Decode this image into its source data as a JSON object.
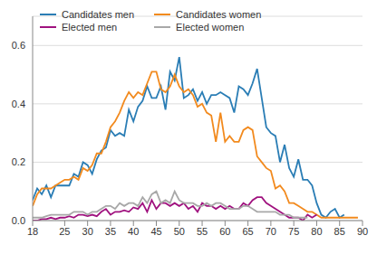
{
  "chart_data": {
    "type": "line",
    "x": [
      18,
      19,
      20,
      21,
      22,
      23,
      24,
      25,
      26,
      27,
      28,
      29,
      30,
      31,
      32,
      33,
      34,
      35,
      36,
      37,
      38,
      39,
      40,
      41,
      42,
      43,
      44,
      45,
      46,
      47,
      48,
      49,
      50,
      51,
      52,
      53,
      54,
      55,
      56,
      57,
      58,
      59,
      60,
      61,
      62,
      63,
      64,
      65,
      66,
      67,
      68,
      69,
      70,
      71,
      72,
      73,
      74,
      75,
      76,
      77,
      78,
      79,
      80,
      81,
      82,
      83,
      84,
      85,
      86,
      87,
      88,
      89
    ],
    "series": [
      {
        "name": "Candidates men",
        "color": "#2a7db5",
        "values": [
          0.07,
          0.11,
          0.09,
          0.12,
          0.08,
          0.12,
          0.12,
          0.12,
          0.12,
          0.16,
          0.15,
          0.2,
          0.19,
          0.16,
          0.21,
          0.24,
          0.25,
          0.31,
          0.29,
          0.3,
          0.29,
          0.38,
          0.34,
          0.39,
          0.41,
          0.46,
          0.42,
          0.42,
          0.46,
          0.38,
          0.51,
          0.48,
          0.56,
          0.42,
          0.43,
          0.45,
          0.41,
          0.44,
          0.4,
          0.43,
          0.43,
          0.44,
          0.43,
          0.42,
          0.37,
          0.46,
          0.45,
          0.43,
          0.47,
          0.52,
          0.42,
          0.32,
          0.3,
          0.29,
          0.2,
          0.26,
          0.18,
          0.15,
          0.21,
          0.14,
          0.14,
          0.12,
          0.06,
          0.02,
          0.01,
          0.03,
          0.04,
          0.01,
          0.02,
          null,
          null,
          null
        ]
      },
      {
        "name": "Candidates women",
        "color": "#f28a1e",
        "values": [
          0.05,
          0.09,
          0.11,
          0.11,
          0.11,
          0.12,
          0.13,
          0.14,
          0.14,
          0.15,
          0.14,
          0.18,
          0.17,
          0.19,
          0.23,
          0.23,
          0.27,
          0.32,
          0.34,
          0.37,
          0.41,
          0.44,
          0.42,
          0.44,
          0.43,
          0.47,
          0.51,
          0.51,
          0.45,
          0.44,
          0.46,
          0.5,
          0.46,
          0.44,
          0.45,
          0.43,
          0.39,
          0.4,
          0.37,
          0.36,
          0.27,
          0.37,
          0.27,
          0.29,
          0.27,
          0.27,
          0.31,
          0.32,
          0.31,
          0.22,
          0.2,
          0.18,
          0.17,
          0.11,
          0.12,
          0.1,
          0.06,
          0.06,
          0.05,
          0.04,
          0.03,
          0.03,
          0.02,
          0.01,
          0.01,
          0.01,
          0.01,
          0.01,
          0.01,
          0.01,
          0.01,
          0.01
        ]
      },
      {
        "name": "Elected men",
        "color": "#a0127f",
        "values": [
          0,
          0,
          0.005,
          0.005,
          0.01,
          0.005,
          0.01,
          0.01,
          0.015,
          0.01,
          0.02,
          0.02,
          0.015,
          0.02,
          0.015,
          0.03,
          0.04,
          0.02,
          0.03,
          0.03,
          0.035,
          0.03,
          0.045,
          0.04,
          0.06,
          0.03,
          0.07,
          0.04,
          0.06,
          0.06,
          0.05,
          0.06,
          0.05,
          0.06,
          0.04,
          0.05,
          0.03,
          0.06,
          0.05,
          0.05,
          0.04,
          0.05,
          0.04,
          0.05,
          0.04,
          0.04,
          0.06,
          0.05,
          0.07,
          0.08,
          0.08,
          0.06,
          0.05,
          0.04,
          0.03,
          0.02,
          0.01,
          0.01,
          0.01,
          0,
          0.02,
          0.01,
          0.02,
          null,
          null,
          null,
          null,
          null,
          null,
          null,
          null,
          null
        ]
      },
      {
        "name": "Elected women",
        "color": "#a8a8a8",
        "values": [
          0.01,
          0.01,
          0.01,
          0.015,
          0.02,
          0.02,
          0.02,
          0.02,
          0.02,
          0.03,
          0.03,
          0.03,
          0.02,
          0.03,
          0.03,
          0.04,
          0.05,
          0.05,
          0.04,
          0.06,
          0.05,
          0.06,
          0.06,
          0.05,
          0.08,
          0.06,
          0.09,
          0.1,
          0.06,
          0.07,
          0.06,
          0.1,
          0.07,
          0.06,
          0.06,
          0.06,
          0.05,
          0.05,
          0.06,
          0.05,
          0.06,
          0.06,
          0.05,
          0.04,
          0.04,
          0.04,
          0.05,
          0.05,
          0.04,
          0.03,
          0.03,
          0.03,
          0.03,
          0.03,
          0.02,
          0.02,
          0.02,
          0.01,
          0.01,
          0.01,
          0.01,
          null,
          null,
          null,
          null,
          null,
          null,
          null,
          null,
          null,
          null,
          null
        ]
      }
    ],
    "xlim": [
      18,
      90
    ],
    "xticks": [
      18,
      25,
      30,
      35,
      40,
      45,
      50,
      55,
      60,
      65,
      70,
      75,
      80,
      85,
      90
    ],
    "ylim": [
      0,
      0.7
    ],
    "yticks": [
      {
        "value": 0,
        "label": "0.0"
      },
      0.2,
      0.4,
      0.6
    ],
    "grid": true,
    "legend": "upper left"
  }
}
